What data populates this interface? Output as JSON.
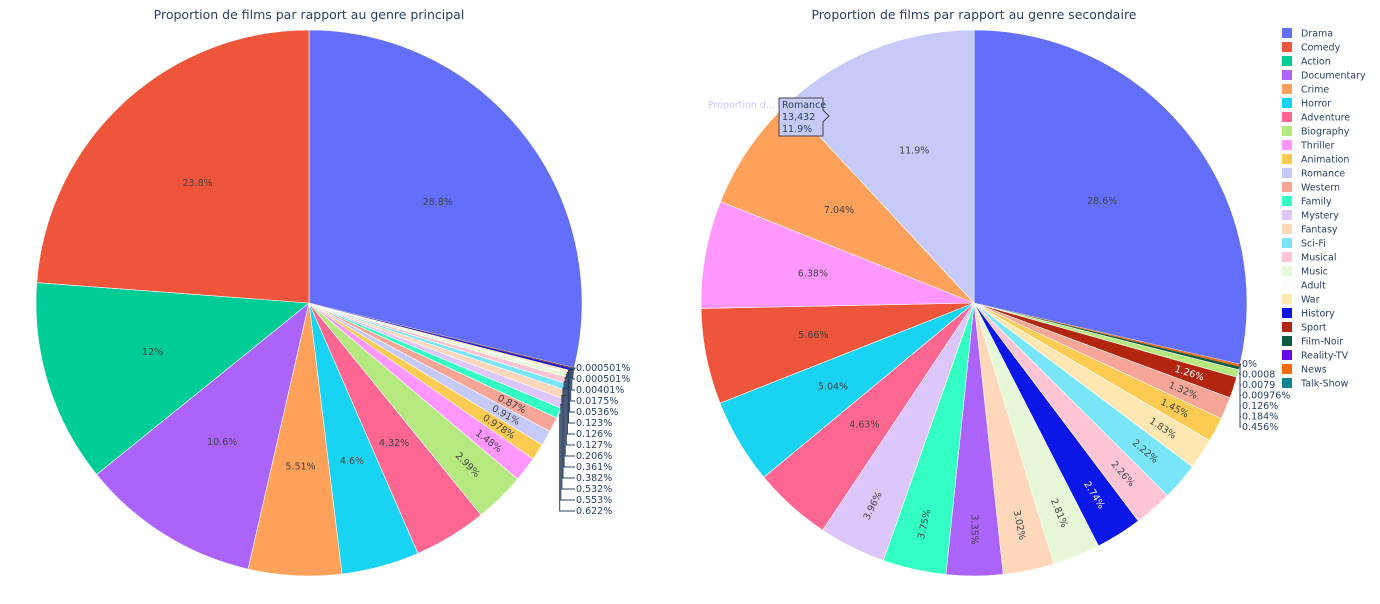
{
  "chart_data": [
    {
      "type": "pie",
      "title": "Proportion de films par rapport au genre principal",
      "slices": [
        {
          "label": "Drama",
          "percent": 28.8,
          "text": "28.8%"
        },
        {
          "label": "Comedy",
          "percent": 23.8,
          "text": "23.8%"
        },
        {
          "label": "Action",
          "percent": 12,
          "text": "12%"
        },
        {
          "label": "Documentary",
          "percent": 10.6,
          "text": "10.6%"
        },
        {
          "label": "Crime",
          "percent": 5.51,
          "text": "5.51%"
        },
        {
          "label": "Horror",
          "percent": 4.6,
          "text": "4.6%"
        },
        {
          "label": "Adventure",
          "percent": 4.32,
          "text": "4.32%"
        },
        {
          "label": "Biography",
          "percent": 2.99,
          "text": "2.99%"
        },
        {
          "label": "Thriller",
          "percent": 1.48,
          "text": "1.48%"
        },
        {
          "label": "Animation",
          "percent": 0.978,
          "text": "0.978%"
        },
        {
          "label": "Romance",
          "percent": 0.91,
          "text": "0.91%"
        },
        {
          "label": "Western",
          "percent": 0.87,
          "text": "0.87%"
        },
        {
          "label": "Family",
          "percent": 0.622,
          "text": "0.622%"
        },
        {
          "label": "Mystery",
          "percent": 0.553,
          "text": "0.553%"
        },
        {
          "label": "Fantasy",
          "percent": 0.532,
          "text": "0.532%"
        },
        {
          "label": "Sci-Fi",
          "percent": 0.382,
          "text": "0.382%"
        },
        {
          "label": "Musical",
          "percent": 0.361,
          "text": "0.361%"
        },
        {
          "label": "Music",
          "percent": 0.206,
          "text": "0.206%"
        },
        {
          "label": "Adult",
          "percent": 0.127,
          "text": "0.127%"
        },
        {
          "label": "War",
          "percent": 0.126,
          "text": "0.126%"
        },
        {
          "label": "History",
          "percent": 0.123,
          "text": "0.123%"
        },
        {
          "label": "Sport",
          "percent": 0.0536,
          "text": "0.0536%"
        },
        {
          "label": "Film-Noir",
          "percent": 0.0175,
          "text": "0.0175%"
        },
        {
          "label": "Reality-TV",
          "percent": 0.00401,
          "text": "0.00401%"
        },
        {
          "label": "News",
          "percent": 0.000501,
          "text": "0.000501%"
        },
        {
          "label": "Talk-Show",
          "percent": 0.000501,
          "text": "0.000501%"
        }
      ]
    },
    {
      "type": "pie",
      "title": "Proportion de films par rapport au genre secondaire",
      "slices": [
        {
          "label": "Drama",
          "percent": 28.6,
          "text": "28.6%"
        },
        {
          "label": "Romance",
          "percent": 11.9,
          "text": "11.9%"
        },
        {
          "label": "Crime",
          "percent": 7.04,
          "text": "7.04%"
        },
        {
          "label": "Thriller",
          "percent": 6.38,
          "text": "6.38%"
        },
        {
          "label": "Comedy",
          "percent": 5.66,
          "text": "5.66%"
        },
        {
          "label": "Horror",
          "percent": 5.04,
          "text": "5.04%"
        },
        {
          "label": "Adventure",
          "percent": 4.63,
          "text": "4.63%"
        },
        {
          "label": "Mystery",
          "percent": 3.96,
          "text": "3.96%"
        },
        {
          "label": "Family",
          "percent": 3.75,
          "text": "3.75%"
        },
        {
          "label": "Documentary",
          "percent": 3.35,
          "text": "3.35%"
        },
        {
          "label": "Fantasy",
          "percent": 3.02,
          "text": "3.02%"
        },
        {
          "label": "Music",
          "percent": 2.81,
          "text": "2.81%"
        },
        {
          "label": "History",
          "percent": 2.74,
          "text": "2.74%"
        },
        {
          "label": "Musical",
          "percent": 2.26,
          "text": "2.26%"
        },
        {
          "label": "Sci-Fi",
          "percent": 2.22,
          "text": "2.22%"
        },
        {
          "label": "War",
          "percent": 1.83,
          "text": "1.83%"
        },
        {
          "label": "Animation",
          "percent": 1.45,
          "text": "1.45%"
        },
        {
          "label": "Western",
          "percent": 1.32,
          "text": "1.32%"
        },
        {
          "label": "Sport",
          "percent": 1.26,
          "text": "1.26%"
        },
        {
          "label": "Biography",
          "percent": 0.456,
          "text": "0.456%"
        },
        {
          "label": "Film-Noir",
          "percent": 0.184,
          "text": "0.184%"
        },
        {
          "label": "News",
          "percent": 0.126,
          "text": "0.126%"
        },
        {
          "label": "Action",
          "percent": 0.00976,
          "text": "0.00976%"
        },
        {
          "label": "Reality-TV",
          "percent": 0.0079,
          "text": "0.0079"
        },
        {
          "label": "Talk-Show",
          "percent": 0.0008,
          "text": "0.0008"
        },
        {
          "label": "Adult",
          "percent": 0,
          "text": "0%"
        }
      ],
      "hover": {
        "trace": "Proportion d...",
        "label": "Romance",
        "value": "13,432",
        "percent": "11.9%"
      }
    }
  ],
  "legend": {
    "position": "top-right",
    "items": [
      {
        "label": "Drama",
        "color": "#636efa"
      },
      {
        "label": "Comedy",
        "color": "#ef553b"
      },
      {
        "label": "Action",
        "color": "#00cc96"
      },
      {
        "label": "Documentary",
        "color": "#ab63fa"
      },
      {
        "label": "Crime",
        "color": "#ffa15a"
      },
      {
        "label": "Horror",
        "color": "#19d3f3"
      },
      {
        "label": "Adventure",
        "color": "#ff6692"
      },
      {
        "label": "Biography",
        "color": "#b6e880"
      },
      {
        "label": "Thriller",
        "color": "#ff97ff"
      },
      {
        "label": "Animation",
        "color": "#fecb52"
      },
      {
        "label": "Romance",
        "color": "#c6caf8"
      },
      {
        "label": "Western",
        "color": "#f6a597"
      },
      {
        "label": "Family",
        "color": "#33ffc5"
      },
      {
        "label": "Mystery",
        "color": "#dcc6fa"
      },
      {
        "label": "Fantasy",
        "color": "#ffd7bb"
      },
      {
        "label": "Sci-Fi",
        "color": "#78e5f8"
      },
      {
        "label": "Musical",
        "color": "#ffc5d4"
      },
      {
        "label": "Music",
        "color": "#e6f8d7"
      },
      {
        "label": "Adult",
        "color": "#fdfdff"
      },
      {
        "label": "War",
        "color": "#ffe7b2"
      },
      {
        "label": "History",
        "color": "#0a17e6"
      },
      {
        "label": "Sport",
        "color": "#b2250e"
      },
      {
        "label": "Film-Noir",
        "color": "#0b5c43"
      },
      {
        "label": "Reality-TV",
        "color": "#6b0ae8"
      },
      {
        "label": "News",
        "color": "#f66a0a"
      },
      {
        "label": "Talk-Show",
        "color": "#12848f"
      }
    ]
  }
}
